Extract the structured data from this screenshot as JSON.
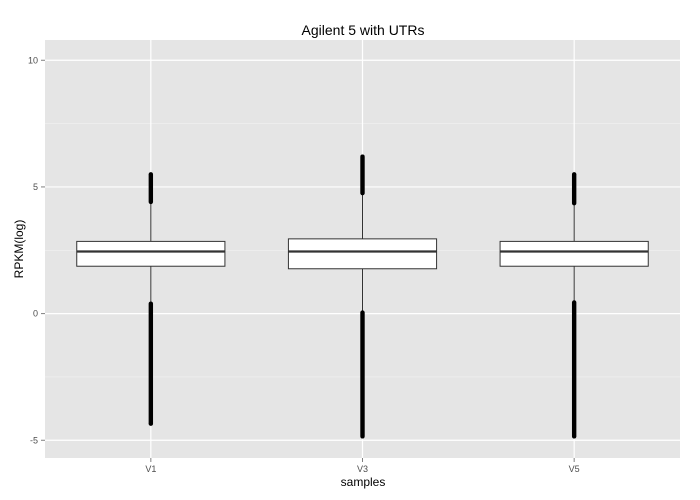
{
  "chart_data": {
    "type": "boxplot",
    "title": "Agilent 5 with UTRs",
    "xlabel": "samples",
    "ylabel": "RPKM(log)",
    "categories": [
      "V1",
      "V3",
      "V5"
    ],
    "yticks": [
      -5,
      0,
      5,
      10
    ],
    "ytick_labels": [
      "-5",
      "0",
      "5",
      "10"
    ],
    "ylim": [
      -5.7,
      10.8
    ],
    "grid": true,
    "background": "#e5e5e5",
    "grid_major_color": "#ffffff",
    "grid_minor_color": "#f2f2f2",
    "box_fill": "#ffffff",
    "box_line": "#333333",
    "point_color": "#000000",
    "series": [
      {
        "category": "V1",
        "q1": 1.87,
        "median": 2.45,
        "q3": 2.85,
        "whisker_low": 0.4,
        "whisker_high": 4.35,
        "outliers_low": [
          -4.35,
          0.4
        ],
        "outliers_high": [
          4.4,
          5.5
        ]
      },
      {
        "category": "V3",
        "q1": 1.77,
        "median": 2.45,
        "q3": 2.95,
        "whisker_low": 0.05,
        "whisker_high": 4.7,
        "outliers_low": [
          -4.85,
          0.05
        ],
        "outliers_high": [
          4.75,
          6.2
        ]
      },
      {
        "category": "V5",
        "q1": 1.87,
        "median": 2.45,
        "q3": 2.85,
        "whisker_low": 0.45,
        "whisker_high": 4.3,
        "outliers_low": [
          -4.85,
          0.45
        ],
        "outliers_high": [
          4.35,
          5.5
        ]
      }
    ]
  }
}
